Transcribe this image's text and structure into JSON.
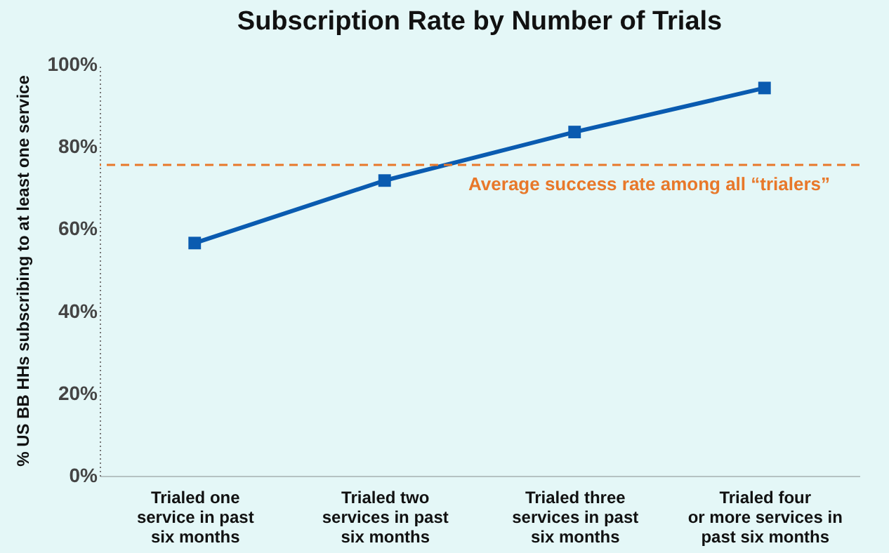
{
  "chart_data": {
    "type": "line",
    "title": "Subscription Rate by Number of Trials",
    "ylabel": "% US BB HHs subscribing to at least one service",
    "categories": [
      "Trialed one\nservice in past\nsix months",
      "Trialed two\nservices in past\nsix months",
      "Trialed three\nservices in past\nsix months",
      "Trialed four\nor more services in\npast six months"
    ],
    "series": [
      {
        "color": "#0a5bb0",
        "values": [
          56.6,
          71.8,
          83.6,
          94.3
        ]
      }
    ],
    "ylim": [
      0,
      100
    ],
    "yticks": [
      {
        "value": 0,
        "label": "0%"
      },
      {
        "value": 20,
        "label": "20%"
      },
      {
        "value": 40,
        "label": "40%"
      },
      {
        "value": 60,
        "label": "60%"
      },
      {
        "value": 80,
        "label": "80%"
      },
      {
        "value": 100,
        "label": "100%"
      }
    ],
    "ref_lines": [
      {
        "axis": "y",
        "value": 75.6,
        "label": "Average success rate among all “trialers”",
        "color": "#e8782a",
        "line_style": "dashed"
      }
    ],
    "marker": "square",
    "line_style": "solid",
    "grid": false
  }
}
